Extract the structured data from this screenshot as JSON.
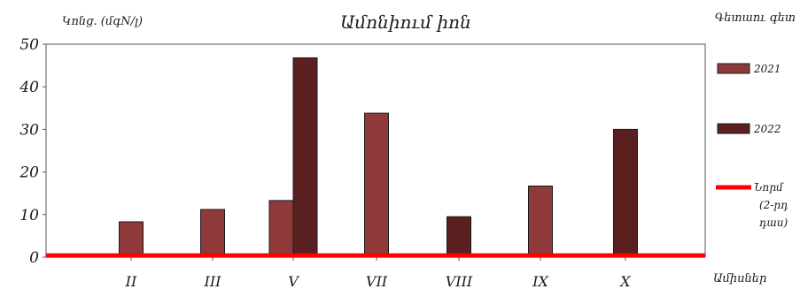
{
  "chart_data": {
    "type": "bar",
    "title": "Ամոնիում իոն",
    "ylabel": "Կոնց. (մգN/լ)",
    "xlabel": "Ամիսներ",
    "station": "Գետաու գետ",
    "categories": [
      "II",
      "III",
      "V",
      "VII",
      "VIII",
      "IX",
      "X"
    ],
    "series": [
      {
        "name": "2021",
        "color": "#8e3a3a",
        "values": [
          8.3,
          11.2,
          13.3,
          33.8,
          null,
          16.7,
          null
        ]
      },
      {
        "name": "2022",
        "color": "#5a2020",
        "values": [
          null,
          null,
          46.8,
          null,
          9.5,
          null,
          30.0
        ]
      }
    ],
    "norm": {
      "value": 0.4,
      "color": "#ff0000",
      "label_lines": [
        "Նորմ",
        "(2-րդ",
        "դաս)"
      ]
    },
    "yticks": [
      0,
      10,
      20,
      30,
      40,
      50
    ],
    "ylim": [
      0,
      50
    ],
    "grid": false,
    "legend_position": "right"
  }
}
